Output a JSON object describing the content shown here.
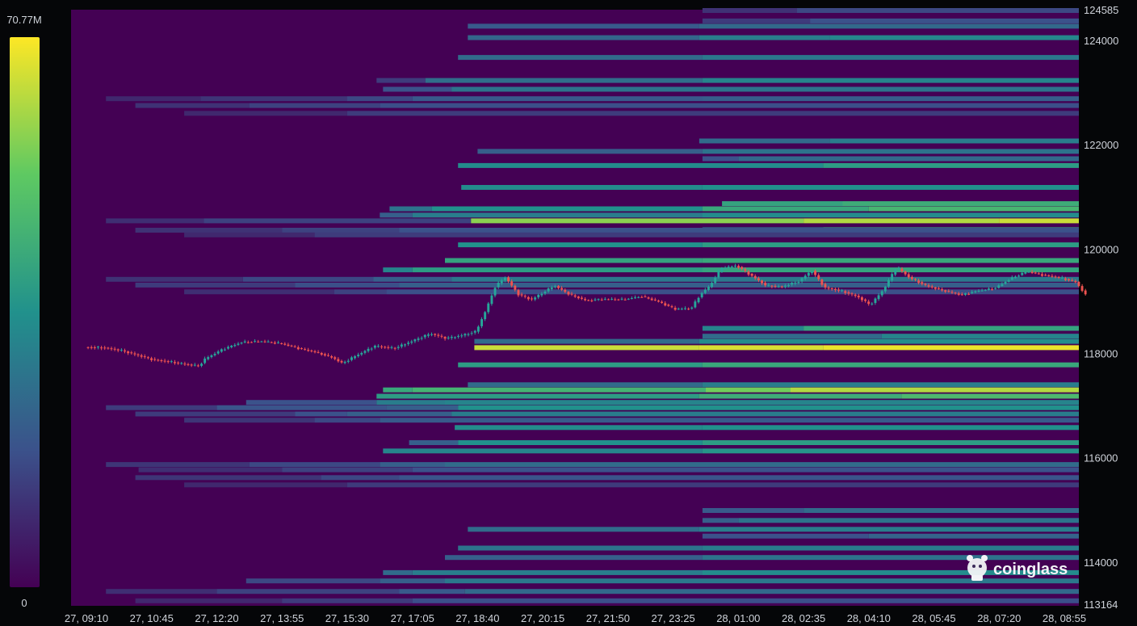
{
  "brand": {
    "name": "coinglass",
    "icon": "coinglass-logo-icon"
  },
  "colorbar": {
    "max_label": "70.77M",
    "min_label": "0",
    "colors": [
      "#440154",
      "#3b528b",
      "#21918c",
      "#5ec962",
      "#fde725"
    ]
  },
  "chart_data": {
    "type": "heatmap",
    "title": "",
    "xlabel": "",
    "ylabel": "",
    "grid": false,
    "ylim": [
      113164,
      124585
    ],
    "background_color": "#440154",
    "y_ticks": [
      "124585",
      "124000",
      "122000",
      "120000",
      "118000",
      "116000",
      "114000",
      "113164"
    ],
    "x_ticks": [
      "27, 09:10",
      "27, 10:45",
      "27, 12:20",
      "27, 13:55",
      "27, 15:30",
      "27, 17:05",
      "27, 18:40",
      "27, 20:15",
      "27, 21:50",
      "27, 23:25",
      "28, 01:00",
      "28, 02:35",
      "28, 04:10",
      "28, 05:45",
      "28, 07:20",
      "28, 08:55"
    ],
    "x_index_range": [
      0,
      15
    ],
    "candle_up_color": "#26a69a",
    "candle_down_color": "#ef5350",
    "price_path": [
      [
        0.0,
        118120
      ],
      [
        0.3,
        118110
      ],
      [
        0.55,
        118060
      ],
      [
        0.8,
        117970
      ],
      [
        1.05,
        117880
      ],
      [
        1.3,
        117840
      ],
      [
        1.55,
        117790
      ],
      [
        1.75,
        117760
      ],
      [
        1.85,
        117900
      ],
      [
        2.1,
        118070
      ],
      [
        2.4,
        118210
      ],
      [
        2.7,
        118230
      ],
      [
        3.0,
        118190
      ],
      [
        3.3,
        118090
      ],
      [
        3.55,
        118020
      ],
      [
        3.8,
        117920
      ],
      [
        3.95,
        117810
      ],
      [
        4.15,
        117950
      ],
      [
        4.45,
        118140
      ],
      [
        4.75,
        118100
      ],
      [
        5.05,
        118250
      ],
      [
        5.3,
        118380
      ],
      [
        5.55,
        118290
      ],
      [
        5.8,
        118350
      ],
      [
        6.0,
        118420
      ],
      [
        6.15,
        118820
      ],
      [
        6.3,
        119290
      ],
      [
        6.45,
        119460
      ],
      [
        6.65,
        119130
      ],
      [
        6.85,
        119030
      ],
      [
        7.05,
        119180
      ],
      [
        7.2,
        119300
      ],
      [
        7.45,
        119120
      ],
      [
        7.7,
        119010
      ],
      [
        7.95,
        119040
      ],
      [
        8.25,
        119030
      ],
      [
        8.55,
        119090
      ],
      [
        8.8,
        118990
      ],
      [
        9.05,
        118850
      ],
      [
        9.3,
        118860
      ],
      [
        9.45,
        119140
      ],
      [
        9.6,
        119310
      ],
      [
        9.75,
        119630
      ],
      [
        10.0,
        119680
      ],
      [
        10.2,
        119510
      ],
      [
        10.45,
        119300
      ],
      [
        10.7,
        119280
      ],
      [
        10.95,
        119380
      ],
      [
        11.15,
        119590
      ],
      [
        11.35,
        119260
      ],
      [
        11.6,
        119200
      ],
      [
        11.85,
        119090
      ],
      [
        12.05,
        118930
      ],
      [
        12.25,
        119220
      ],
      [
        12.45,
        119660
      ],
      [
        12.65,
        119450
      ],
      [
        12.9,
        119300
      ],
      [
        13.15,
        119210
      ],
      [
        13.45,
        119120
      ],
      [
        13.7,
        119200
      ],
      [
        13.95,
        119240
      ],
      [
        14.2,
        119430
      ],
      [
        14.45,
        119570
      ],
      [
        14.7,
        119500
      ],
      [
        14.95,
        119450
      ],
      [
        15.2,
        119370
      ],
      [
        15.35,
        119120
      ]
    ],
    "liquidity_bands": [
      {
        "price": 124570,
        "levels": [
          [
            9.45,
            0.15
          ],
          [
            10.9,
            0.22
          ]
        ]
      },
      {
        "price": 124370,
        "levels": [
          [
            9.45,
            0.18
          ],
          [
            11.1,
            0.25
          ]
        ]
      },
      {
        "price": 124270,
        "levels": [
          [
            5.85,
            0.28
          ],
          [
            9.4,
            0.34
          ]
        ]
      },
      {
        "price": 124050,
        "levels": [
          [
            5.85,
            0.33
          ],
          [
            9.4,
            0.42
          ],
          [
            11.4,
            0.46
          ]
        ]
      },
      {
        "price": 123670,
        "levels": [
          [
            5.7,
            0.35
          ],
          [
            9.45,
            0.4
          ]
        ]
      },
      {
        "price": 123230,
        "levels": [
          [
            4.45,
            0.18
          ],
          [
            5.2,
            0.36
          ],
          [
            9.45,
            0.45
          ]
        ]
      },
      {
        "price": 123060,
        "levels": [
          [
            4.55,
            0.25
          ],
          [
            5.6,
            0.38
          ]
        ]
      },
      {
        "price": 122880,
        "levels": [
          [
            0.3,
            0.12
          ],
          [
            1.75,
            0.16
          ],
          [
            4.0,
            0.22
          ],
          [
            5.0,
            0.28
          ],
          [
            9.45,
            0.3
          ]
        ]
      },
      {
        "price": 122750,
        "levels": [
          [
            0.75,
            0.15
          ],
          [
            2.5,
            0.2
          ],
          [
            4.5,
            0.24
          ]
        ]
      },
      {
        "price": 122600,
        "levels": [
          [
            1.5,
            0.12
          ],
          [
            4.0,
            0.18
          ]
        ]
      },
      {
        "price": 122070,
        "levels": [
          [
            9.4,
            0.35
          ],
          [
            11.4,
            0.42
          ]
        ]
      },
      {
        "price": 121870,
        "levels": [
          [
            6.0,
            0.3
          ],
          [
            9.45,
            0.38
          ]
        ]
      },
      {
        "price": 121730,
        "levels": [
          [
            9.45,
            0.25
          ],
          [
            10.0,
            0.34
          ]
        ]
      },
      {
        "price": 121600,
        "levels": [
          [
            5.7,
            0.48
          ],
          [
            11.3,
            0.55
          ]
        ]
      },
      {
        "price": 121180,
        "levels": [
          [
            5.75,
            0.48
          ],
          [
            9.45,
            0.5
          ]
        ]
      },
      {
        "price": 120870,
        "levels": [
          [
            9.75,
            0.58
          ],
          [
            11.6,
            0.62
          ]
        ]
      },
      {
        "price": 120770,
        "levels": [
          [
            4.65,
            0.38
          ],
          [
            5.3,
            0.5
          ],
          [
            9.45,
            0.6
          ],
          [
            12.0,
            0.66
          ]
        ]
      },
      {
        "price": 120650,
        "levels": [
          [
            4.5,
            0.3
          ],
          [
            5.0,
            0.42
          ],
          [
            9.45,
            0.48
          ]
        ]
      },
      {
        "price": 120540,
        "levels": [
          [
            0.3,
            0.14
          ],
          [
            1.8,
            0.2
          ],
          [
            5.9,
            0.82
          ],
          [
            11.0,
            0.88
          ],
          [
            14.0,
            0.92
          ]
        ]
      },
      {
        "price": 120370,
        "levels": [
          [
            9.45,
            0.38
          ],
          [
            11.3,
            0.58
          ]
        ]
      },
      {
        "price": 120360,
        "levels": [
          [
            0.75,
            0.15
          ],
          [
            3.0,
            0.2
          ],
          [
            4.8,
            0.25
          ]
        ]
      },
      {
        "price": 120270,
        "levels": [
          [
            1.5,
            0.12
          ],
          [
            3.5,
            0.18
          ]
        ]
      },
      {
        "price": 120080,
        "levels": [
          [
            5.7,
            0.5
          ],
          [
            9.45,
            0.55
          ]
        ]
      },
      {
        "price": 119780,
        "levels": [
          [
            5.5,
            0.58
          ],
          [
            9.45,
            0.6
          ]
        ]
      },
      {
        "price": 119600,
        "levels": [
          [
            4.55,
            0.45
          ],
          [
            5.0,
            0.55
          ],
          [
            9.45,
            0.58
          ]
        ]
      },
      {
        "price": 119420,
        "levels": [
          [
            0.3,
            0.15
          ],
          [
            2.4,
            0.22
          ],
          [
            4.4,
            0.3
          ],
          [
            5.6,
            0.4
          ]
        ]
      },
      {
        "price": 119310,
        "levels": [
          [
            0.75,
            0.18
          ],
          [
            3.2,
            0.24
          ],
          [
            4.8,
            0.3
          ]
        ]
      },
      {
        "price": 119180,
        "levels": [
          [
            1.5,
            0.14
          ],
          [
            3.8,
            0.2
          ],
          [
            4.6,
            0.24
          ]
        ]
      },
      {
        "price": 118480,
        "levels": [
          [
            9.45,
            0.45
          ],
          [
            11.0,
            0.58
          ]
        ]
      },
      {
        "price": 118330,
        "levels": [
          [
            9.45,
            0.35
          ],
          [
            12.2,
            0.45
          ]
        ]
      },
      {
        "price": 118230,
        "levels": [
          [
            5.95,
            0.35
          ],
          [
            9.4,
            0.48
          ]
        ]
      },
      {
        "price": 118110,
        "levels": [
          [
            5.95,
            0.92
          ],
          [
            9.4,
            0.94
          ],
          [
            11.3,
            0.97
          ]
        ]
      },
      {
        "price": 117780,
        "levels": [
          [
            5.7,
            0.55
          ],
          [
            9.45,
            0.6
          ]
        ]
      },
      {
        "price": 117400,
        "levels": [
          [
            5.85,
            0.35
          ],
          [
            9.45,
            0.42
          ]
        ]
      },
      {
        "price": 117300,
        "levels": [
          [
            4.55,
            0.6
          ],
          [
            5.0,
            0.65
          ],
          [
            9.5,
            0.78
          ],
          [
            10.8,
            0.88
          ]
        ]
      },
      {
        "price": 117180,
        "levels": [
          [
            4.45,
            0.55
          ],
          [
            9.4,
            0.62
          ],
          [
            12.5,
            0.68
          ]
        ]
      },
      {
        "price": 117060,
        "levels": [
          [
            2.45,
            0.25
          ],
          [
            4.45,
            0.42
          ],
          [
            5.5,
            0.45
          ]
        ]
      },
      {
        "price": 116960,
        "levels": [
          [
            0.3,
            0.18
          ],
          [
            2.0,
            0.26
          ],
          [
            4.6,
            0.3
          ],
          [
            5.7,
            0.5
          ]
        ]
      },
      {
        "price": 116840,
        "levels": [
          [
            0.75,
            0.18
          ],
          [
            3.2,
            0.25
          ],
          [
            4.0,
            0.3
          ],
          [
            5.6,
            0.42
          ]
        ]
      },
      {
        "price": 116720,
        "levels": [
          [
            1.5,
            0.16
          ],
          [
            3.5,
            0.22
          ],
          [
            4.5,
            0.28
          ]
        ]
      },
      {
        "price": 116580,
        "levels": [
          [
            5.65,
            0.48
          ],
          [
            9.45,
            0.5
          ]
        ]
      },
      {
        "price": 116290,
        "levels": [
          [
            4.95,
            0.3
          ],
          [
            5.7,
            0.5
          ],
          [
            9.45,
            0.55
          ]
        ]
      },
      {
        "price": 116130,
        "levels": [
          [
            4.55,
            0.45
          ],
          [
            9.45,
            0.52
          ]
        ]
      },
      {
        "price": 115870,
        "levels": [
          [
            0.3,
            0.16
          ],
          [
            2.5,
            0.22
          ],
          [
            4.5,
            0.3
          ],
          [
            5.5,
            0.35
          ]
        ]
      },
      {
        "price": 115770,
        "levels": [
          [
            0.8,
            0.14
          ],
          [
            3.0,
            0.2
          ],
          [
            5.0,
            0.25
          ]
        ]
      },
      {
        "price": 115620,
        "levels": [
          [
            0.75,
            0.16
          ],
          [
            3.6,
            0.22
          ],
          [
            4.8,
            0.26
          ]
        ]
      },
      {
        "price": 115480,
        "levels": [
          [
            1.5,
            0.12
          ],
          [
            4.0,
            0.18
          ]
        ]
      },
      {
        "price": 114990,
        "levels": [
          [
            9.45,
            0.28
          ],
          [
            11.0,
            0.35
          ]
        ]
      },
      {
        "price": 114800,
        "levels": [
          [
            9.45,
            0.3
          ],
          [
            10.0,
            0.38
          ]
        ]
      },
      {
        "price": 114630,
        "levels": [
          [
            5.85,
            0.35
          ],
          [
            9.4,
            0.42
          ]
        ]
      },
      {
        "price": 114500,
        "levels": [
          [
            9.45,
            0.25
          ],
          [
            12.0,
            0.32
          ]
        ]
      },
      {
        "price": 114270,
        "levels": [
          [
            5.7,
            0.38
          ],
          [
            9.45,
            0.42
          ]
        ]
      },
      {
        "price": 114090,
        "levels": [
          [
            5.5,
            0.3
          ],
          [
            9.45,
            0.38
          ]
        ]
      },
      {
        "price": 113800,
        "levels": [
          [
            4.55,
            0.35
          ],
          [
            5.0,
            0.42
          ],
          [
            9.45,
            0.48
          ]
        ]
      },
      {
        "price": 113640,
        "levels": [
          [
            2.45,
            0.22
          ],
          [
            4.5,
            0.3
          ],
          [
            5.5,
            0.4
          ]
        ]
      },
      {
        "price": 113440,
        "levels": [
          [
            0.3,
            0.14
          ],
          [
            2.0,
            0.2
          ],
          [
            4.8,
            0.28
          ],
          [
            5.8,
            0.34
          ]
        ]
      },
      {
        "price": 113260,
        "levels": [
          [
            0.75,
            0.12
          ],
          [
            3.0,
            0.18
          ],
          [
            5.0,
            0.24
          ]
        ]
      }
    ]
  }
}
